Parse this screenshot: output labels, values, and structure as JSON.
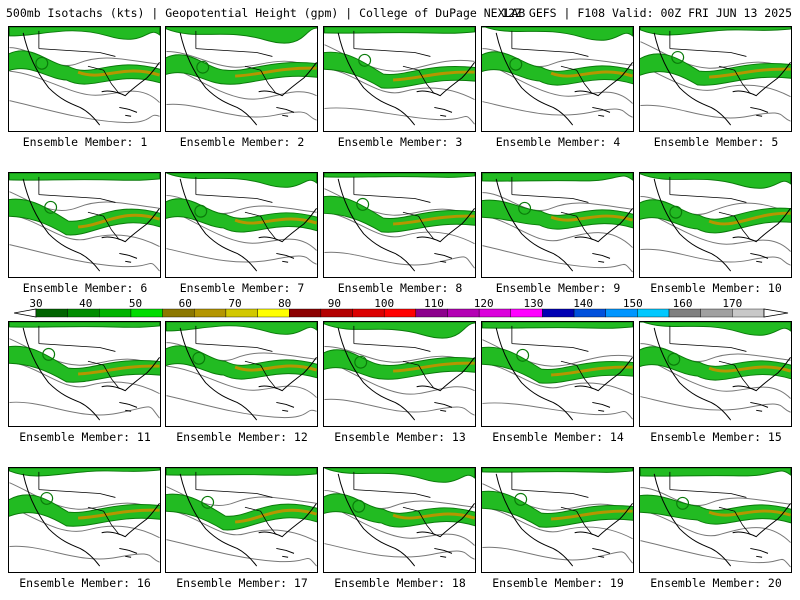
{
  "header": {
    "title": "500mb Isotachs (kts) | Geopotential Height (gpm) | College of DuPage NEXLAB",
    "run_info": "12Z GEFS | F108 Valid: 00Z FRI JUN 13 2025"
  },
  "panels": [
    {
      "label": "Ensemble Member: 1"
    },
    {
      "label": "Ensemble Member: 2"
    },
    {
      "label": "Ensemble Member: 3"
    },
    {
      "label": "Ensemble Member: 4"
    },
    {
      "label": "Ensemble Member: 5"
    },
    {
      "label": "Ensemble Member: 6"
    },
    {
      "label": "Ensemble Member: 7"
    },
    {
      "label": "Ensemble Member: 8"
    },
    {
      "label": "Ensemble Member: 9"
    },
    {
      "label": "Ensemble Member: 10"
    },
    {
      "label": "Ensemble Member: 11"
    },
    {
      "label": "Ensemble Member: 12"
    },
    {
      "label": "Ensemble Member: 13"
    },
    {
      "label": "Ensemble Member: 14"
    },
    {
      "label": "Ensemble Member: 15"
    },
    {
      "label": "Ensemble Member: 16"
    },
    {
      "label": "Ensemble Member: 17"
    },
    {
      "label": "Ensemble Member: 18"
    },
    {
      "label": "Ensemble Member: 19"
    },
    {
      "label": "Ensemble Member: 20"
    }
  ],
  "colorbar": {
    "tick_labels": [
      "30",
      "40",
      "50",
      "60",
      "70",
      "80",
      "90",
      "100",
      "110",
      "120",
      "130",
      "140",
      "150",
      "160",
      "170"
    ],
    "colors": [
      "#006400",
      "#008c00",
      "#00b400",
      "#00dc00",
      "#8c7800",
      "#b49600",
      "#d2c800",
      "#ffff00",
      "#8c0000",
      "#b40000",
      "#dc0000",
      "#ff0000",
      "#8c008c",
      "#b400b4",
      "#dc00dc",
      "#ff00ff",
      "#0000b4",
      "#0050dc",
      "#0096ff",
      "#00c8ff",
      "#808080",
      "#a0a0a0",
      "#c8c8c8"
    ]
  },
  "map_colors": {
    "jet_light": "#22bb22",
    "jet_dark": "#0a7a0a",
    "jet_core": "#b49600",
    "contour": "#777777",
    "coast": "#000000"
  }
}
